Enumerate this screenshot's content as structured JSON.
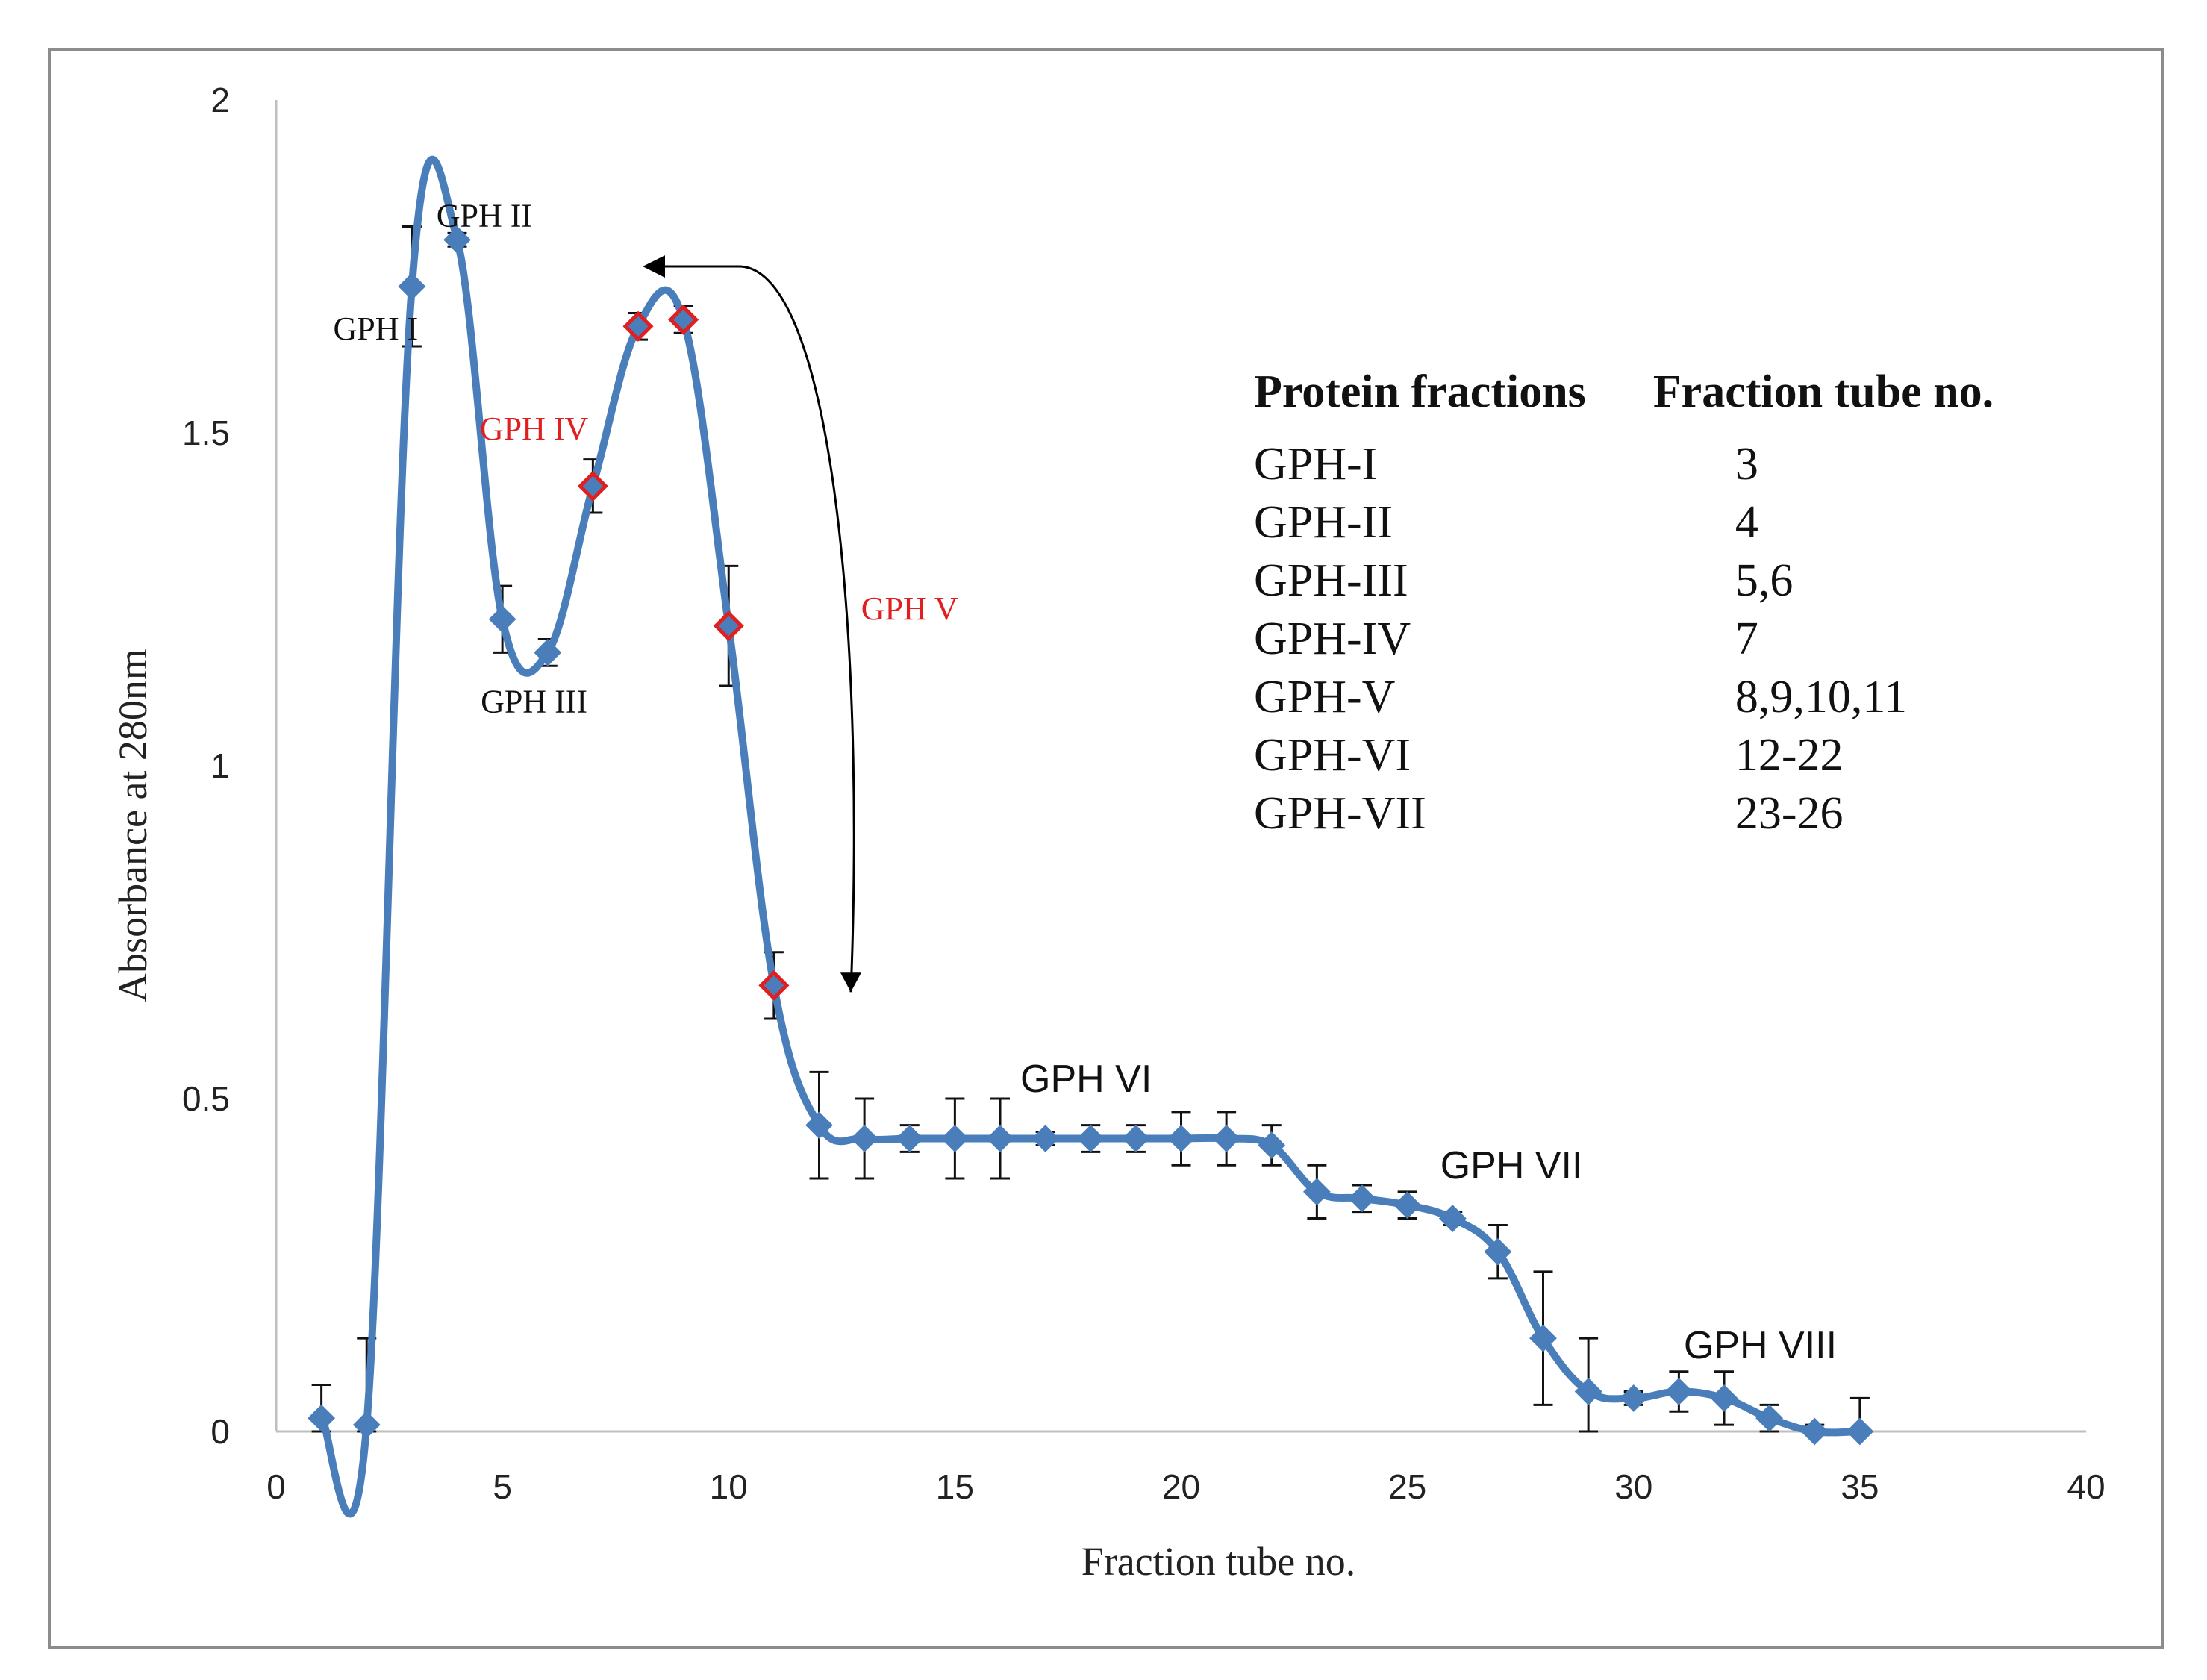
{
  "chart_data": {
    "type": "line",
    "title": "",
    "xlabel": "Fraction tube no.",
    "ylabel": "Absorbance at 280nm",
    "xlim": [
      0,
      40
    ],
    "ylim": [
      0,
      2
    ],
    "xticks": [
      "0",
      "5",
      "10",
      "15",
      "20",
      "25",
      "30",
      "35",
      "40"
    ],
    "yticks": [
      "0",
      "0.5",
      "1",
      "1.5",
      "2"
    ],
    "grid": false,
    "series": [
      {
        "name": "Absorbance",
        "color": "#4a7ebb",
        "x": [
          1,
          2,
          3,
          4,
          5,
          6,
          7,
          8,
          9,
          10,
          11,
          12,
          13,
          14,
          15,
          16,
          17,
          18,
          19,
          20,
          21,
          22,
          23,
          24,
          25,
          26,
          27,
          28,
          29,
          30,
          31,
          32,
          33,
          34,
          35
        ],
        "values": [
          0.02,
          0.01,
          1.72,
          1.79,
          1.22,
          1.17,
          1.42,
          1.66,
          1.67,
          1.21,
          0.67,
          0.46,
          0.44,
          0.44,
          0.44,
          0.44,
          0.44,
          0.44,
          0.44,
          0.44,
          0.44,
          0.43,
          0.36,
          0.35,
          0.34,
          0.32,
          0.27,
          0.14,
          0.06,
          0.05,
          0.06,
          0.05,
          0.02,
          0.0,
          0.0
        ],
        "errors": [
          0.05,
          0.13,
          0.09,
          0.01,
          0.05,
          0.02,
          0.04,
          0.02,
          0.02,
          0.09,
          0.05,
          0.08,
          0.06,
          0.02,
          0.06,
          0.06,
          0.01,
          0.02,
          0.02,
          0.04,
          0.04,
          0.03,
          0.04,
          0.02,
          0.02,
          0.01,
          0.04,
          0.1,
          0.08,
          0.01,
          0.03,
          0.04,
          0.02,
          0.01,
          0.05
        ],
        "highlighted_points": [
          7,
          8,
          9,
          10,
          11
        ],
        "highlight_color": "#e02020"
      }
    ],
    "annotations": [
      {
        "text": "GPH I",
        "x": 2.2,
        "y": 1.64,
        "color": "#111111",
        "font": "serif"
      },
      {
        "text": "GPH II",
        "x": 4.6,
        "y": 1.81,
        "color": "#111111",
        "font": "serif"
      },
      {
        "text": "GPH III",
        "x": 5.7,
        "y": 1.08,
        "color": "#111111",
        "font": "serif"
      },
      {
        "text": "GPH IV",
        "x": 5.7,
        "y": 1.49,
        "color": "#e02020",
        "font": "serif"
      },
      {
        "text": "GPH V",
        "x": 14.0,
        "y": 1.22,
        "color": "#e02020",
        "font": "serif"
      },
      {
        "text": "GPH VI",
        "x": 17.9,
        "y": 0.51,
        "color": "#111111",
        "font": "sans"
      },
      {
        "text": "GPH VII",
        "x": 27.3,
        "y": 0.38,
        "color": "#111111",
        "font": "sans"
      },
      {
        "text": "GPH VIII",
        "x": 32.8,
        "y": 0.11,
        "color": "#111111",
        "font": "sans"
      }
    ],
    "arrow": {
      "from": [
        12.7,
        0.66
      ],
      "to": [
        8.2,
        1.75
      ],
      "description": "curved double-headed arrow indicating GPH V range"
    }
  },
  "legend_table": {
    "headers": [
      "Protein fractions",
      "Fraction tube no."
    ],
    "rows": [
      [
        "GPH-I",
        "3"
      ],
      [
        "GPH-II",
        "4"
      ],
      [
        "GPH-III",
        "5,6"
      ],
      [
        "GPH-IV",
        "7"
      ],
      [
        "GPH-V",
        "8,9,10,11"
      ],
      [
        "GPH-VI",
        "12-22"
      ],
      [
        "GPH-VII",
        "23-26"
      ]
    ]
  }
}
